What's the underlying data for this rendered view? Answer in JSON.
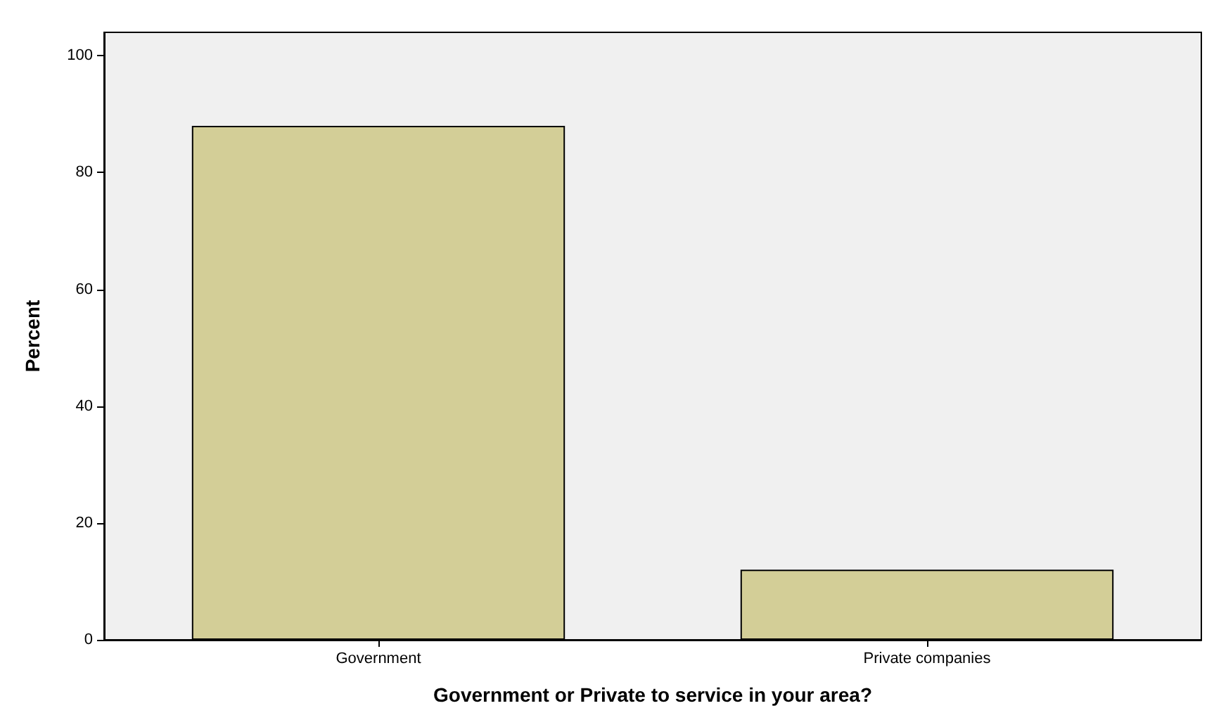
{
  "chart_data": {
    "type": "bar",
    "xlabel": "Government or Private to service in your area?",
    "ylabel": "Percent",
    "categories": [
      "Government",
      "Private companies"
    ],
    "values": [
      88,
      12
    ],
    "color": "#d3ce97",
    "ylim": [
      0,
      104
    ],
    "yticks": [
      0,
      20,
      40,
      60,
      80,
      100
    ],
    "grid": false
  }
}
